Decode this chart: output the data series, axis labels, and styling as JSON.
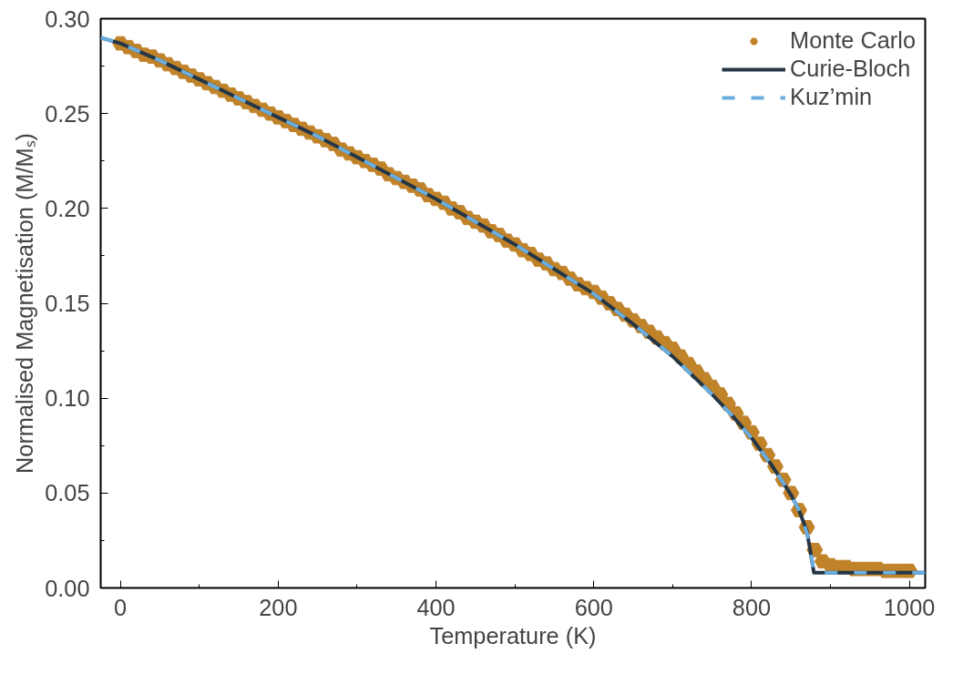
{
  "chart_data": {
    "type": "line",
    "xlabel": "Temperature (K)",
    "ylabel": "Normalised Magnetisation (M/Mₛ)",
    "xlim": [
      -25,
      1020
    ],
    "ylim": [
      0,
      0.3
    ],
    "xticks": [
      0,
      200,
      400,
      600,
      800,
      1000
    ],
    "yticks": [
      {
        "value": 0,
        "label": "0.00"
      },
      {
        "value": 0.05,
        "label": "0.05"
      },
      {
        "value": 0.1,
        "label": "0.10"
      },
      {
        "value": 0.15,
        "label": "0.15"
      },
      {
        "value": 0.2,
        "label": "0.20"
      },
      {
        "value": 0.25,
        "label": "0.25"
      },
      {
        "value": 0.3,
        "label": "0.30"
      }
    ],
    "grid": false,
    "legend": "top right",
    "series": [
      {
        "name": "Monte Carlo",
        "type": "scatter",
        "color": "#c0832a",
        "x": [
          0,
          10,
          20,
          30,
          40,
          50,
          60,
          70,
          80,
          90,
          100,
          110,
          120,
          130,
          140,
          150,
          160,
          170,
          180,
          190,
          200,
          210,
          220,
          230,
          240,
          250,
          260,
          270,
          280,
          290,
          300,
          310,
          320,
          330,
          340,
          350,
          360,
          370,
          380,
          390,
          400,
          410,
          420,
          430,
          440,
          450,
          460,
          470,
          480,
          490,
          500,
          510,
          520,
          530,
          540,
          550,
          560,
          570,
          580,
          590,
          600,
          610,
          620,
          630,
          640,
          650,
          660,
          670,
          680,
          690,
          700,
          710,
          720,
          730,
          740,
          750,
          760,
          770,
          780,
          790,
          800,
          810,
          820,
          830,
          840,
          850,
          860,
          870,
          880,
          890,
          900,
          910,
          920,
          930,
          940,
          950,
          960,
          970,
          980,
          990,
          1000
        ],
        "values": [
          0.287,
          0.285,
          0.283,
          0.281,
          0.28,
          0.278,
          0.276,
          0.274,
          0.272,
          0.27,
          0.268,
          0.266,
          0.264,
          0.262,
          0.26,
          0.258,
          0.256,
          0.254,
          0.252,
          0.25,
          0.248,
          0.246,
          0.244,
          0.242,
          0.24,
          0.238,
          0.236,
          0.234,
          0.231,
          0.229,
          0.227,
          0.225,
          0.223,
          0.221,
          0.218,
          0.216,
          0.214,
          0.212,
          0.21,
          0.207,
          0.205,
          0.203,
          0.2,
          0.198,
          0.195,
          0.193,
          0.191,
          0.188,
          0.186,
          0.183,
          0.181,
          0.178,
          0.176,
          0.173,
          0.171,
          0.168,
          0.166,
          0.163,
          0.16,
          0.158,
          0.156,
          0.153,
          0.15,
          0.147,
          0.144,
          0.141,
          0.138,
          0.135,
          0.132,
          0.129,
          0.126,
          0.122,
          0.118,
          0.114,
          0.11,
          0.106,
          0.102,
          0.097,
          0.092,
          0.087,
          0.082,
          0.076,
          0.07,
          0.064,
          0.057,
          0.05,
          0.041,
          0.032,
          0.02,
          0.014,
          0.012,
          0.011,
          0.011,
          0.01,
          0.01,
          0.01,
          0.01,
          0.009,
          0.009,
          0.009,
          0.009
        ]
      },
      {
        "name": "Curie-Bloch",
        "line_style": "solid",
        "color": "#253746",
        "x": [
          -25,
          0,
          50,
          100,
          150,
          200,
          250,
          300,
          350,
          400,
          450,
          500,
          550,
          600,
          650,
          700,
          750,
          775,
          800,
          825,
          850,
          860,
          870,
          875,
          879,
          879,
          1020
        ],
        "values": [
          0.29,
          0.287,
          0.278,
          0.268,
          0.258,
          0.248,
          0.238,
          0.227,
          0.216,
          0.205,
          0.193,
          0.181,
          0.168,
          0.155,
          0.139,
          0.122,
          0.102,
          0.091,
          0.079,
          0.065,
          0.049,
          0.041,
          0.03,
          0.018,
          0.008,
          0.008,
          0.008
        ]
      },
      {
        "name": "Kuz’min",
        "line_style": "dashed",
        "color": "#6aaee0",
        "x": [
          -25,
          0,
          50,
          100,
          150,
          200,
          250,
          300,
          350,
          400,
          450,
          500,
          550,
          600,
          650,
          700,
          750,
          775,
          800,
          825,
          850,
          860,
          870,
          875,
          879,
          1020
        ],
        "values": [
          0.29,
          0.287,
          0.278,
          0.268,
          0.258,
          0.248,
          0.238,
          0.227,
          0.216,
          0.205,
          0.193,
          0.181,
          0.168,
          0.155,
          0.139,
          0.122,
          0.102,
          0.091,
          0.079,
          0.065,
          0.049,
          0.041,
          0.029,
          0.019,
          0.008,
          0.008
        ]
      }
    ]
  }
}
